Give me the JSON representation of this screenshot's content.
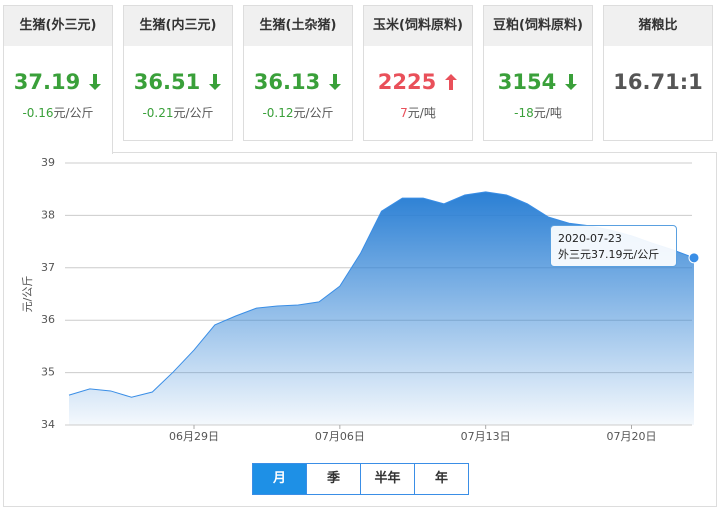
{
  "cards": [
    {
      "title": "生猪(外三元)",
      "value": 37.19,
      "change": -0.16,
      "unit": "元/公斤",
      "trend": "down"
    },
    {
      "title": "生猪(内三元)",
      "value": 36.51,
      "change": -0.21,
      "unit": "元/公斤",
      "trend": "down"
    },
    {
      "title": "生猪(土杂猪)",
      "value": 36.13,
      "change": -0.12,
      "unit": "元/公斤",
      "trend": "down"
    },
    {
      "title": "玉米(饲料原料)",
      "value": 2225,
      "change": 7,
      "unit": "元/吨",
      "trend": "up"
    },
    {
      "title": "豆粕(饲料原料)",
      "value": 3154,
      "change": -18,
      "unit": "元/吨",
      "trend": "down"
    },
    {
      "title": "猪粮比",
      "value": "16.71:1"
    }
  ],
  "chart_data": {
    "type": "area",
    "y_label": "元/公斤",
    "color": "#3a8ee6",
    "categories": [
      null,
      null,
      null,
      null,
      null,
      null,
      "06月29日",
      null,
      null,
      null,
      null,
      null,
      null,
      "07月06日",
      null,
      null,
      null,
      null,
      null,
      null,
      "07月13日",
      null,
      null,
      null,
      null,
      null,
      null,
      "07月20日",
      null,
      null,
      null
    ],
    "values": [
      34.57,
      34.69,
      34.65,
      34.53,
      34.63,
      35.01,
      35.43,
      35.91,
      36.08,
      36.23,
      36.27,
      36.29,
      36.35,
      36.65,
      37.28,
      38.08,
      38.33,
      38.33,
      38.22,
      38.39,
      38.45,
      38.39,
      38.22,
      37.97,
      37.85,
      37.8,
      37.72,
      37.61,
      37.47,
      37.34,
      37.19
    ],
    "ylim": [
      34,
      39
    ],
    "yticks": [
      34,
      35,
      36,
      37,
      38,
      39
    ],
    "grid": true,
    "tooltip": {
      "date": "2020-07-23",
      "label": "外三元",
      "value": 37.19,
      "unit": "元/公斤"
    }
  },
  "range_buttons": {
    "options": [
      "月",
      "季",
      "半年",
      "年"
    ],
    "selected": "月"
  }
}
